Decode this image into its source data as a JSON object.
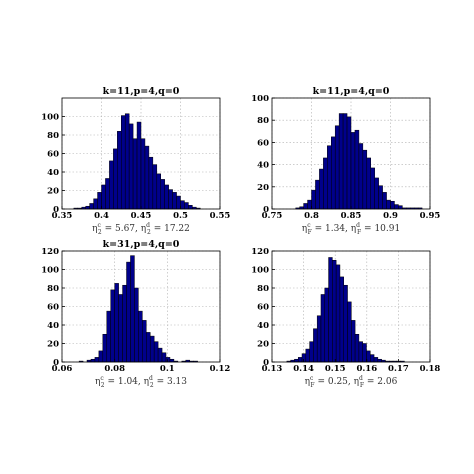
{
  "colors": {
    "bar_fill": "#00008b",
    "bar_edge": "#000000",
    "grid": "#b0b0b0"
  },
  "chart_data": [
    {
      "type": "bar",
      "title": "k=11,p=4,q=0",
      "caption": {
        "eta_symbol": "η",
        "sub": "2",
        "sup1": "c",
        "sup2": "d",
        "value1": "5.67",
        "value2": "17.22"
      },
      "xlim": [
        0.35,
        0.55
      ],
      "ylim": [
        0,
        120
      ],
      "xticks": [
        "0.35",
        "0.4",
        "0.45",
        "0.5",
        "0.55"
      ],
      "xtick_values": [
        0.35,
        0.4,
        0.45,
        0.5,
        0.55
      ],
      "yticks": [
        "0",
        "20",
        "40",
        "60",
        "80",
        "100"
      ],
      "ytick_values": [
        0,
        20,
        40,
        60,
        80,
        100
      ],
      "grid": true,
      "bin_start": 0.365,
      "bin_width": 0.005,
      "values": [
        1,
        1,
        2,
        3,
        6,
        11,
        18,
        26,
        33,
        52,
        65,
        84,
        101,
        103,
        92,
        76,
        94,
        76,
        68,
        56,
        48,
        38,
        32,
        26,
        21,
        18,
        14,
        9,
        7,
        4,
        2,
        1
      ]
    },
    {
      "type": "bar",
      "title": "k=11,p=4,q=0",
      "caption": {
        "eta_symbol": "η",
        "sub": "F",
        "sup1": "c",
        "sup2": "d",
        "value1": "1.34",
        "value2": "10.91"
      },
      "xlim": [
        0.75,
        0.95
      ],
      "ylim": [
        0,
        100
      ],
      "xticks": [
        "0.75",
        "0.8",
        "0.85",
        "0.9",
        "0.95"
      ],
      "xtick_values": [
        0.75,
        0.8,
        0.85,
        0.9,
        0.95
      ],
      "yticks": [
        "0",
        "20",
        "40",
        "60",
        "80",
        "100"
      ],
      "ytick_values": [
        0,
        20,
        40,
        60,
        80,
        100
      ],
      "grid": true,
      "bin_start": 0.78,
      "bin_width": 0.005,
      "values": [
        1,
        2,
        5,
        8,
        17,
        26,
        36,
        46,
        57,
        65,
        75,
        86,
        86,
        83,
        69,
        71,
        59,
        53,
        46,
        37,
        28,
        21,
        15,
        8,
        7,
        4,
        3,
        1,
        1,
        1,
        1,
        1
      ]
    },
    {
      "type": "bar",
      "title": "k=31,p=4,q=0",
      "caption": {
        "eta_symbol": "η",
        "sub": "2",
        "sup1": "c",
        "sup2": "d",
        "value1": "1.04",
        "value2": "3.13"
      },
      "xlim": [
        0.06,
        0.12
      ],
      "ylim": [
        0,
        120
      ],
      "xticks": [
        "0.06",
        "0.08",
        "0.1",
        "0.12"
      ],
      "xtick_values": [
        0.06,
        0.08,
        0.1,
        0.12
      ],
      "yticks": [
        "0",
        "20",
        "40",
        "60",
        "80",
        "100",
        "120"
      ],
      "ytick_values": [
        0,
        20,
        40,
        60,
        80,
        100,
        120
      ],
      "grid": true,
      "bin_start": 0.0665,
      "bin_width": 0.0015,
      "values": [
        1,
        0,
        2,
        3,
        5,
        12,
        30,
        55,
        78,
        85,
        73,
        83,
        108,
        115,
        80,
        55,
        45,
        32,
        28,
        22,
        15,
        10,
        5,
        3,
        1,
        0,
        1,
        2,
        1,
        1
      ]
    },
    {
      "type": "bar",
      "title": "",
      "caption": {
        "eta_symbol": "η",
        "sub": "F",
        "sup1": "c",
        "sup2": "d",
        "value1": "0.25",
        "value2": "2.06"
      },
      "xlim": [
        0.13,
        0.18
      ],
      "ylim": [
        0,
        120
      ],
      "xticks": [
        "0.13",
        "0.14",
        "0.15",
        "0.16",
        "0.17",
        "0.18"
      ],
      "xtick_values": [
        0.13,
        0.14,
        0.15,
        0.16,
        0.17,
        0.18
      ],
      "yticks": [
        "0",
        "20",
        "40",
        "60",
        "80",
        "100",
        "120"
      ],
      "ytick_values": [
        0,
        20,
        40,
        60,
        80,
        100,
        120
      ],
      "grid": true,
      "bin_start": 0.1347,
      "bin_width": 0.0012,
      "values": [
        1,
        2,
        3,
        5,
        9,
        14,
        22,
        36,
        50,
        73,
        80,
        113,
        110,
        105,
        92,
        83,
        65,
        45,
        30,
        22,
        20,
        12,
        8,
        5,
        3,
        2,
        1,
        1,
        1,
        1,
        1
      ]
    }
  ]
}
